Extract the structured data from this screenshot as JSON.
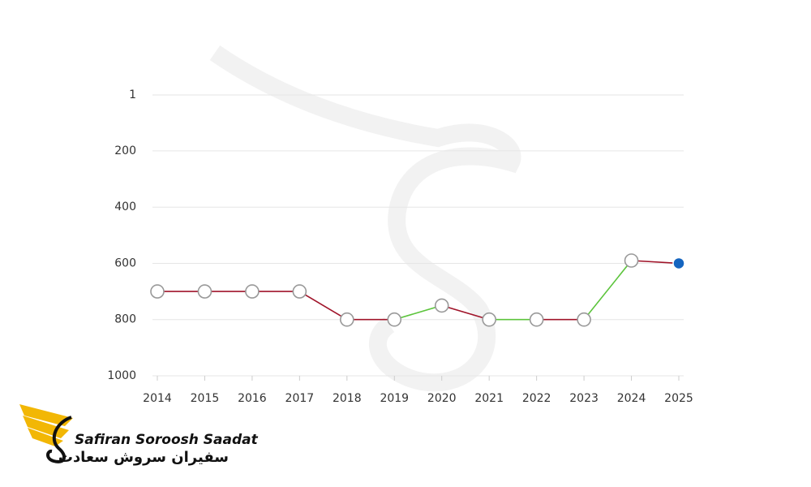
{
  "chart_data": {
    "type": "line",
    "categories": [
      "2014",
      "2015",
      "2016",
      "2017",
      "2018",
      "2019",
      "2020",
      "2021",
      "2022",
      "2023",
      "2024",
      "2025"
    ],
    "series": [
      {
        "values": [
          700,
          700,
          700,
          700,
          800,
          800,
          750,
          800,
          800,
          800,
          590,
          600
        ],
        "segment_colors": [
          "#a0142a",
          "#a0142a",
          "#a0142a",
          "#a0142a",
          "#a0142a",
          "#5cc43c",
          "#a0142a",
          "#5cc43c",
          "#a0142a",
          "#5cc43c",
          "#a0142a"
        ],
        "marker_fill": "#ffffff",
        "marker_stroke": "#999999",
        "last_marker_color": "#1565c0"
      }
    ],
    "ylim": [
      1000,
      1
    ],
    "yticks": [
      1,
      200,
      400,
      600,
      800,
      1000
    ],
    "grid": true
  },
  "logo": {
    "name": "Safiran Soroosh Saadat",
    "name_fa": "سفیران سروش سعادت"
  }
}
